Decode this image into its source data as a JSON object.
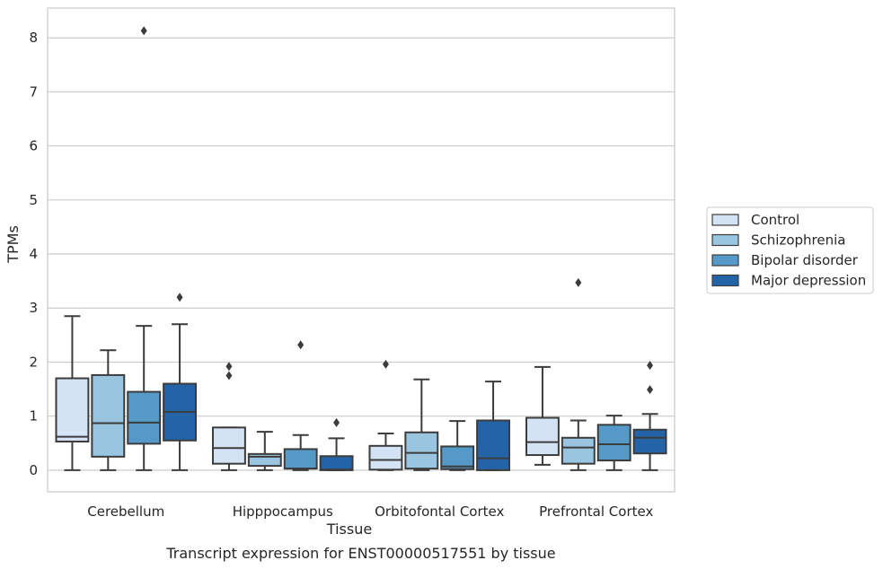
{
  "caption": "Transcript expression for ENST00000517551 by tissue",
  "chart_data": {
    "type": "box",
    "xlabel": "Tissue",
    "ylabel": "TPMs",
    "ylim": [
      -0.4,
      8.55
    ],
    "yticks": [
      "0",
      "1",
      "2",
      "3",
      "4",
      "5",
      "6",
      "7",
      "8"
    ],
    "grid": true,
    "legend_position": "right",
    "categories": [
      "Cerebellum",
      "Hipppocampus",
      "Orbitofontal Cortex",
      "Prefrontal Cortex"
    ],
    "series": [
      {
        "name": "Control",
        "color": "#d4e3f3",
        "boxes": [
          {
            "whislo": 0.0,
            "q1": 0.53,
            "med": 0.62,
            "q3": 1.7,
            "whishi": 2.85,
            "fliers": []
          },
          {
            "whislo": 0.0,
            "q1": 0.12,
            "med": 0.41,
            "q3": 0.79,
            "whishi": 0.79,
            "fliers": [
              1.75,
              1.92
            ]
          },
          {
            "whislo": 0.0,
            "q1": 0.01,
            "med": 0.19,
            "q3": 0.45,
            "whishi": 0.68,
            "fliers": [
              1.96
            ]
          },
          {
            "whislo": 0.1,
            "q1": 0.28,
            "med": 0.52,
            "q3": 0.97,
            "whishi": 1.91,
            "fliers": []
          }
        ]
      },
      {
        "name": "Schizophrenia",
        "color": "#9ac5e0",
        "boxes": [
          {
            "whislo": 0.0,
            "q1": 0.25,
            "med": 0.87,
            "q3": 1.76,
            "whishi": 2.22,
            "fliers": []
          },
          {
            "whislo": 0.0,
            "q1": 0.08,
            "med": 0.25,
            "q3": 0.3,
            "whishi": 0.71,
            "fliers": []
          },
          {
            "whislo": 0.0,
            "q1": 0.03,
            "med": 0.32,
            "q3": 0.7,
            "whishi": 1.68,
            "fliers": []
          },
          {
            "whislo": 0.0,
            "q1": 0.12,
            "med": 0.42,
            "q3": 0.6,
            "whishi": 0.92,
            "fliers": [
              3.47
            ]
          }
        ]
      },
      {
        "name": "Bipolar disorder",
        "color": "#5599c8",
        "boxes": [
          {
            "whislo": 0.0,
            "q1": 0.49,
            "med": 0.88,
            "q3": 1.45,
            "whishi": 2.67,
            "fliers": [
              8.13
            ]
          },
          {
            "whislo": 0.0,
            "q1": 0.03,
            "med": 0.03,
            "q3": 0.39,
            "whishi": 0.65,
            "fliers": [
              2.32
            ]
          },
          {
            "whislo": 0.0,
            "q1": 0.02,
            "med": 0.07,
            "q3": 0.44,
            "whishi": 0.91,
            "fliers": []
          },
          {
            "whislo": 0.0,
            "q1": 0.18,
            "med": 0.48,
            "q3": 0.84,
            "whishi": 1.01,
            "fliers": []
          }
        ]
      },
      {
        "name": "Major depression",
        "color": "#2364a8",
        "boxes": [
          {
            "whislo": 0.0,
            "q1": 0.55,
            "med": 1.08,
            "q3": 1.6,
            "whishi": 2.7,
            "fliers": [
              3.2
            ]
          },
          {
            "whislo": 0.0,
            "q1": 0.0,
            "med": 0.01,
            "q3": 0.26,
            "whishi": 0.59,
            "fliers": [
              0.88
            ]
          },
          {
            "whislo": 0.0,
            "q1": 0.0,
            "med": 0.22,
            "q3": 0.92,
            "whishi": 1.64,
            "fliers": []
          },
          {
            "whislo": 0.0,
            "q1": 0.31,
            "med": 0.6,
            "q3": 0.75,
            "whishi": 1.04,
            "fliers": [
              1.49,
              1.94
            ]
          }
        ]
      }
    ]
  }
}
